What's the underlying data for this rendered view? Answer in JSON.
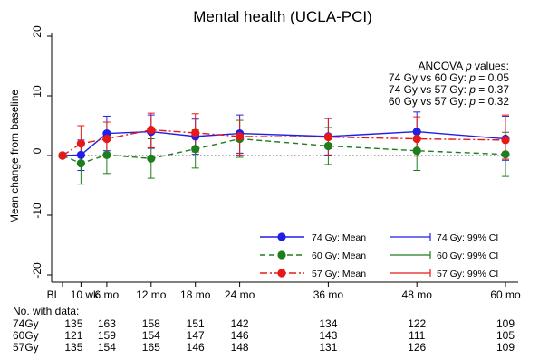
{
  "chart_data": {
    "type": "line",
    "title": "Mental health (UCLA-PCI)",
    "ylabel": "Mean change from baseline",
    "xlabel": "",
    "ylim": [
      -20,
      20
    ],
    "yticks": [
      -20,
      -10,
      0,
      10,
      20
    ],
    "x_ticks": [
      {
        "label": "BL",
        "x": 0
      },
      {
        "label": "10 wk",
        "x": 2.5
      },
      {
        "label": "6 mo",
        "x": 6
      },
      {
        "label": "12 mo",
        "x": 12
      },
      {
        "label": "18 mo",
        "x": 18
      },
      {
        "label": "24 mo",
        "x": 24
      },
      {
        "label": "36 mo",
        "x": 36
      },
      {
        "label": "48 mo",
        "x": 48
      },
      {
        "label": "60 mo",
        "x": 60
      }
    ],
    "reference_line": 0,
    "annotation": {
      "title_prefix": "ANCOVA ",
      "title_italic": "p",
      "title_suffix": " values:",
      "lines": [
        {
          "prefix": "74 Gy vs 60 Gy: ",
          "p": "p",
          "value": " = 0.05"
        },
        {
          "prefix": "74 Gy vs 57 Gy: ",
          "p": "p",
          "value": " = 0.37"
        },
        {
          "prefix": "60 Gy vs 57 Gy: ",
          "p": "p",
          "value": " = 0.32"
        }
      ]
    },
    "series": [
      {
        "name": "74 Gy: Mean",
        "ci_name": "74 Gy: 99% CI",
        "color": "#1f1fe6",
        "dash": "solid",
        "x": [
          0,
          2.5,
          6,
          12,
          18,
          24,
          36,
          48,
          60
        ],
        "values": [
          0,
          0.1,
          3.7,
          4.0,
          3.2,
          3.7,
          3.2,
          4.0,
          2.8
        ],
        "ci_low": [
          0,
          -2.5,
          0.8,
          1.2,
          0.2,
          0.4,
          0.1,
          0.5,
          -0.8
        ],
        "ci_high": [
          0,
          2.6,
          6.6,
          6.8,
          6.1,
          6.8,
          6.2,
          7.3,
          6.6
        ]
      },
      {
        "name": "60 Gy: Mean",
        "ci_name": "60 Gy: 99% CI",
        "color": "#1e7e1e",
        "dash": "dash",
        "x": [
          0,
          2.5,
          6,
          12,
          18,
          24,
          36,
          48,
          60
        ],
        "values": [
          0,
          -1.3,
          0.1,
          -0.5,
          1.1,
          2.8,
          1.6,
          0.8,
          0.2
        ],
        "ci_low": [
          0,
          -4.8,
          -3.0,
          -3.8,
          -2.1,
          -0.3,
          -1.5,
          -2.5,
          -3.5
        ],
        "ci_high": [
          0,
          2.1,
          3.2,
          2.8,
          4.3,
          5.9,
          4.7,
          4.1,
          3.9
        ]
      },
      {
        "name": "57 Gy: Mean",
        "ci_name": "57 Gy: 99% CI",
        "color": "#e81818",
        "dash": "dashdot",
        "x": [
          0,
          2.5,
          6,
          12,
          18,
          24,
          36,
          48,
          60
        ],
        "values": [
          0,
          2.0,
          2.8,
          4.3,
          3.8,
          3.2,
          3.1,
          2.8,
          2.6
        ],
        "ci_low": [
          0,
          -1.0,
          0.0,
          1.3,
          0.6,
          0.1,
          0.0,
          -0.1,
          -0.6
        ],
        "ci_high": [
          0,
          5.0,
          5.6,
          7.1,
          7.0,
          6.3,
          6.2,
          6.5,
          6.8
        ]
      }
    ],
    "patients_table": {
      "title": "No. with data:",
      "rows": [
        {
          "label": "74Gy",
          "values": [
            135,
            163,
            158,
            151,
            142,
            134,
            122,
            109
          ]
        },
        {
          "label": "60Gy",
          "values": [
            121,
            159,
            154,
            147,
            146,
            143,
            111,
            105
          ]
        },
        {
          "label": "57Gy",
          "values": [
            135,
            154,
            165,
            146,
            148,
            131,
            126,
            109
          ]
        }
      ],
      "x": [
        2.5,
        6,
        12,
        18,
        24,
        36,
        48,
        60
      ]
    }
  }
}
